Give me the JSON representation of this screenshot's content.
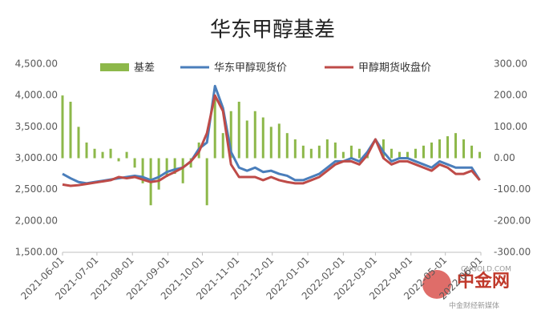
{
  "chart_data": {
    "type": "bar-line",
    "title": "华东甲醇基差",
    "x": [
      "2021-06-01",
      "2021-06-08",
      "2021-06-15",
      "2021-06-22",
      "2021-06-29",
      "2021-07-06",
      "2021-07-13",
      "2021-07-20",
      "2021-07-27",
      "2021-08-03",
      "2021-08-10",
      "2021-08-17",
      "2021-08-24",
      "2021-08-31",
      "2021-09-07",
      "2021-09-14",
      "2021-09-21",
      "2021-09-28",
      "2021-10-05",
      "2021-10-12",
      "2021-10-19",
      "2021-10-26",
      "2021-11-02",
      "2021-11-09",
      "2021-11-16",
      "2021-11-23",
      "2021-11-30",
      "2021-12-07",
      "2021-12-14",
      "2021-12-21",
      "2021-12-28",
      "2022-01-04",
      "2022-01-11",
      "2022-01-18",
      "2022-01-25",
      "2022-02-01",
      "2022-02-08",
      "2022-02-15",
      "2022-02-22",
      "2022-03-01",
      "2022-03-08",
      "2022-03-15",
      "2022-03-22",
      "2022-03-29",
      "2022-04-05",
      "2022-04-12",
      "2022-04-19",
      "2022-04-26",
      "2022-05-03",
      "2022-05-10",
      "2022-05-17",
      "2022-05-24",
      "2022-05-31"
    ],
    "series": [
      {
        "name": "基差",
        "color": "#8db84a",
        "axis": "y2",
        "kind": "bar",
        "values": [
          200,
          180,
          100,
          50,
          30,
          20,
          30,
          -10,
          20,
          -30,
          -80,
          -150,
          -100,
          -60,
          -50,
          -80,
          -30,
          50,
          -150,
          200,
          80,
          150,
          180,
          120,
          150,
          130,
          100,
          110,
          80,
          60,
          40,
          30,
          40,
          60,
          50,
          20,
          40,
          30,
          10,
          0,
          60,
          30,
          20,
          20,
          30,
          40,
          50,
          60,
          70,
          80,
          60,
          40,
          20
        ]
      },
      {
        "name": "华东甲醇现货价",
        "color": "#4a7ebb",
        "kind": "line",
        "values": [
          2750,
          2680,
          2620,
          2600,
          2620,
          2640,
          2660,
          2680,
          2700,
          2720,
          2700,
          2650,
          2700,
          2780,
          2820,
          2850,
          2950,
          3150,
          3250,
          4150,
          3800,
          3100,
          2850,
          2800,
          2850,
          2780,
          2800,
          2750,
          2720,
          2650,
          2650,
          2700,
          2750,
          2850,
          2950,
          2950,
          3000,
          2950,
          3100,
          3300,
          3100,
          2950,
          3000,
          3000,
          2950,
          2900,
          2850,
          2950,
          2900,
          2850,
          2850,
          2850,
          2650
        ]
      },
      {
        "name": "甲醇期货收盘价",
        "color": "#be4b48",
        "kind": "line",
        "values": [
          2580,
          2560,
          2570,
          2590,
          2610,
          2630,
          2650,
          2700,
          2680,
          2700,
          2660,
          2620,
          2640,
          2720,
          2780,
          2850,
          2950,
          3100,
          3400,
          4000,
          3750,
          2900,
          2700,
          2700,
          2700,
          2650,
          2700,
          2650,
          2620,
          2600,
          2600,
          2650,
          2700,
          2800,
          2900,
          2950,
          2950,
          2900,
          3050,
          3300,
          3000,
          2900,
          2950,
          2950,
          2900,
          2850,
          2800,
          2900,
          2850,
          2750,
          2750,
          2800,
          2650
        ]
      }
    ],
    "xlim": [
      "2021-06-01",
      "2022-06-01"
    ],
    "xticks": [
      "2021-06-01",
      "2021-07-01",
      "2021-08-01",
      "2021-09-01",
      "2021-10-01",
      "2021-11-01",
      "2021-12-01",
      "2022-01-01",
      "2022-02-01",
      "2022-03-01",
      "2022-04-01",
      "2022-05-01",
      "2022-06-01"
    ],
    "ylim": [
      1500,
      4500
    ],
    "yticks": [
      {
        "value": 1500,
        "label": "1,500.00"
      },
      {
        "value": 2000,
        "label": "2,000.00"
      },
      {
        "value": 2500,
        "label": "2,500.00"
      },
      {
        "value": 3000,
        "label": "3,000.00"
      },
      {
        "value": 3500,
        "label": "3,500.00"
      },
      {
        "value": 4000,
        "label": "4,000.00"
      },
      {
        "value": 4500,
        "label": "4,500.00"
      }
    ],
    "y2lim": [
      -300,
      300
    ],
    "y2ticks": [
      {
        "value": -300,
        "label": "-300.00"
      },
      {
        "value": -200,
        "label": "-200.00"
      },
      {
        "value": -100,
        "label": "-100.00"
      },
      {
        "value": 0,
        "label": "0.00"
      },
      {
        "value": 100,
        "label": "100.00"
      },
      {
        "value": 200,
        "label": "200.00"
      },
      {
        "value": 300,
        "label": "300.00"
      }
    ],
    "legend": "top"
  },
  "brand": {
    "name": "中金网",
    "site": "CNGOLD.COM",
    "slogan": "中金财经新媒体"
  }
}
